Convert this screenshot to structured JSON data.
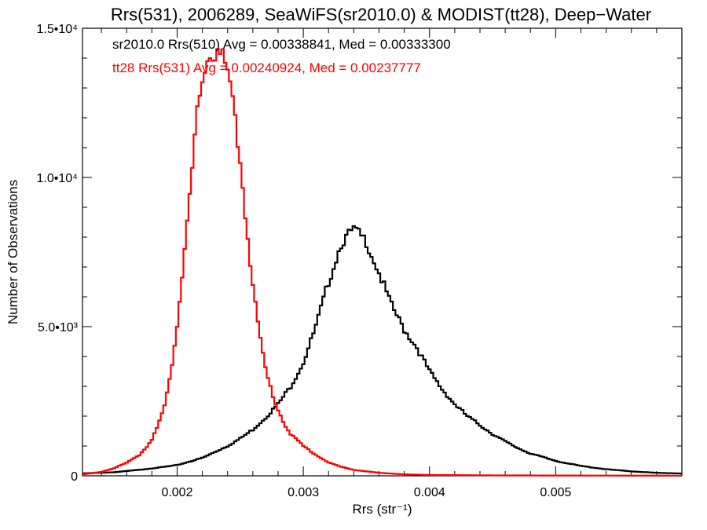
{
  "chart_data": {
    "type": "line",
    "title": "Rrs(531), 2006289, SeaWiFS(sr2010.0) & MODIST(tt28), Deep−Water",
    "xlabel": "Rrs (str⁻¹)",
    "ylabel": "Number of Observations",
    "xlim": [
      0.00125,
      0.006
    ],
    "ylim": [
      0,
      15000
    ],
    "x_ticks": [
      {
        "value": 0.002,
        "label": "0.002"
      },
      {
        "value": 0.003,
        "label": "0.003"
      },
      {
        "value": 0.004,
        "label": "0.004"
      },
      {
        "value": 0.005,
        "label": "0.005"
      }
    ],
    "y_ticks": [
      {
        "value": 0,
        "label": "0"
      },
      {
        "value": 5000,
        "label": "5.0•10³"
      },
      {
        "value": 10000,
        "label": "1.0•10⁴"
      },
      {
        "value": 15000,
        "label": "1.5•10⁴"
      }
    ],
    "grid": false,
    "annotations": [
      {
        "text": "sr2010.0 Rrs(510) Avg = 0.00338841, Med = 0.00333300",
        "color": "#000000"
      },
      {
        "text": "tt28 Rrs(531) Avg = 0.00240924, Med = 0.00237777",
        "color": "#ff0000"
      }
    ],
    "series": [
      {
        "color": "#000000",
        "x": [
          0.00125,
          0.0015,
          0.0017,
          0.0019,
          0.002,
          0.0021,
          0.0022,
          0.0023,
          0.0024,
          0.0025,
          0.0026,
          0.0027,
          0.0028,
          0.0029,
          0.003,
          0.0031,
          0.0032,
          0.0033,
          0.0034,
          0.0035,
          0.0036,
          0.0037,
          0.0038,
          0.0039,
          0.004,
          0.0041,
          0.0042,
          0.0043,
          0.0044,
          0.0045,
          0.0046,
          0.0047,
          0.0048,
          0.005,
          0.0052,
          0.0054,
          0.0056,
          0.0058,
          0.006
        ],
        "values": [
          80,
          120,
          200,
          300,
          360,
          480,
          600,
          800,
          1000,
          1250,
          1550,
          1950,
          2400,
          3000,
          3800,
          5000,
          6500,
          7800,
          8250,
          7850,
          6800,
          5700,
          4900,
          4300,
          3500,
          2900,
          2400,
          2000,
          1700,
          1400,
          1150,
          930,
          750,
          500,
          330,
          220,
          150,
          100,
          80
        ]
      },
      {
        "color": "#ff0000",
        "x": [
          0.00125,
          0.0014,
          0.0015,
          0.0016,
          0.0017,
          0.00175,
          0.0018,
          0.00185,
          0.0019,
          0.00195,
          0.002,
          0.00205,
          0.0021,
          0.00215,
          0.0022,
          0.00225,
          0.0023,
          0.00235,
          0.0024,
          0.00245,
          0.0025,
          0.00255,
          0.0026,
          0.00265,
          0.0027,
          0.00275,
          0.0028,
          0.00285,
          0.0029,
          0.003,
          0.0031,
          0.0032,
          0.0033,
          0.0034,
          0.0036,
          0.0038,
          0.004,
          0.0045,
          0.005,
          0.006
        ],
        "values": [
          50,
          130,
          250,
          450,
          700,
          900,
          1200,
          1700,
          2400,
          3500,
          5000,
          7000,
          9300,
          11800,
          13500,
          14000,
          14150,
          14100,
          13500,
          12300,
          10500,
          8400,
          6400,
          4800,
          3600,
          2800,
          2200,
          1750,
          1400,
          1000,
          700,
          450,
          300,
          200,
          100,
          50,
          30,
          15,
          10,
          5
        ]
      }
    ]
  }
}
